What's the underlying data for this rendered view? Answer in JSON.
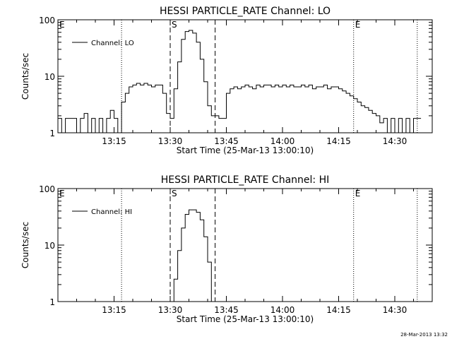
{
  "footer": {
    "timestamp": "28-Mar-2013 13:32"
  },
  "chart_data": [
    {
      "type": "line",
      "title": "HESSI PARTICLE_RATE Channel: LO",
      "xlabel": "Start Time (25-Mar-13 13:00:10)",
      "ylabel": "Counts/sec",
      "yscale": "log",
      "xlim": [
        "13:00",
        "14:40"
      ],
      "ylim": [
        1,
        100
      ],
      "x_tick_labels": [
        "13:15",
        "13:30",
        "13:45",
        "14:00",
        "14:15",
        "14:30"
      ],
      "y_tick_labels": [
        "1",
        "10",
        "100"
      ],
      "legend": {
        "position": "top-left",
        "entries": [
          "Channel: LO"
        ]
      },
      "markers": [
        {
          "label": "E",
          "time": "13:00",
          "style": "dotted"
        },
        {
          "label": "",
          "time": "13:17",
          "style": "dotted"
        },
        {
          "label": "S",
          "time": "13:30",
          "style": "dashed"
        },
        {
          "label": "",
          "time": "13:42",
          "style": "dashed"
        },
        {
          "label": "E",
          "time": "14:19",
          "style": "dotted"
        },
        {
          "label": "",
          "time": "14:36",
          "style": "dotted"
        }
      ],
      "series": [
        {
          "name": "Channel: LO",
          "x": [
            "13:00",
            "13:01",
            "13:02",
            "13:03",
            "13:04",
            "13:05",
            "13:06",
            "13:07",
            "13:08",
            "13:09",
            "13:10",
            "13:11",
            "13:12",
            "13:13",
            "13:14",
            "13:15",
            "13:16",
            "13:17",
            "13:18",
            "13:19",
            "13:20",
            "13:21",
            "13:22",
            "13:23",
            "13:24",
            "13:25",
            "13:26",
            "13:27",
            "13:28",
            "13:29",
            "13:30",
            "13:31",
            "13:32",
            "13:33",
            "13:34",
            "13:35",
            "13:36",
            "13:37",
            "13:38",
            "13:39",
            "13:40",
            "13:41",
            "13:42",
            "13:43",
            "13:44",
            "13:45",
            "13:46",
            "13:47",
            "13:48",
            "13:49",
            "13:50",
            "13:51",
            "13:52",
            "13:53",
            "13:54",
            "13:55",
            "13:56",
            "13:57",
            "13:58",
            "13:59",
            "14:00",
            "14:01",
            "14:02",
            "14:03",
            "14:04",
            "14:05",
            "14:06",
            "14:07",
            "14:08",
            "14:09",
            "14:10",
            "14:11",
            "14:12",
            "14:13",
            "14:14",
            "14:15",
            "14:16",
            "14:17",
            "14:18",
            "14:19",
            "14:20",
            "14:21",
            "14:22",
            "14:23",
            "14:24",
            "14:25",
            "14:26",
            "14:27",
            "14:28",
            "14:29",
            "14:30",
            "14:31",
            "14:32",
            "14:33",
            "14:34",
            "14:35",
            "14:36"
          ],
          "y": [
            1.8,
            1,
            1.8,
            1.8,
            1.8,
            1,
            1.8,
            2.2,
            1,
            1.8,
            1,
            1.8,
            1,
            1.8,
            2.5,
            1.8,
            1,
            3.5,
            5,
            6.5,
            7,
            7.5,
            7,
            7.5,
            7,
            6.5,
            7,
            7,
            5,
            2.2,
            1.8,
            6,
            18,
            45,
            62,
            65,
            58,
            40,
            20,
            8,
            3,
            2,
            2,
            1.8,
            1.8,
            5,
            6,
            6.5,
            6,
            6.5,
            7,
            6.5,
            6,
            7,
            6.5,
            7,
            7,
            6.5,
            7,
            6.5,
            7,
            6.5,
            7,
            6.5,
            6.5,
            7,
            6.5,
            7,
            6,
            6.5,
            6.5,
            7,
            6,
            6.5,
            6.5,
            6,
            5.5,
            5,
            4.5,
            4,
            3.5,
            3,
            2.8,
            2.5,
            2.2,
            2,
            1.5,
            1.8,
            1,
            1.8,
            1,
            1.8,
            1,
            1.8,
            1,
            1.8,
            1.8
          ]
        }
      ]
    },
    {
      "type": "line",
      "title": "HESSI PARTICLE_RATE Channel: HI",
      "xlabel": "Start Time (25-Mar-13 13:00:10)",
      "ylabel": "Counts/sec",
      "yscale": "log",
      "xlim": [
        "13:00",
        "14:40"
      ],
      "ylim": [
        1,
        100
      ],
      "x_tick_labels": [
        "13:15",
        "13:30",
        "13:45",
        "14:00",
        "14:15",
        "14:30"
      ],
      "y_tick_labels": [
        "1",
        "10",
        "100"
      ],
      "legend": {
        "position": "top-left",
        "entries": [
          "Channel: HI"
        ]
      },
      "markers": [
        {
          "label": "E",
          "time": "13:00",
          "style": "dotted"
        },
        {
          "label": "",
          "time": "13:17",
          "style": "dotted"
        },
        {
          "label": "S",
          "time": "13:30",
          "style": "dashed"
        },
        {
          "label": "",
          "time": "13:42",
          "style": "dashed"
        },
        {
          "label": "E",
          "time": "14:19",
          "style": "dotted"
        },
        {
          "label": "",
          "time": "14:36",
          "style": "dotted"
        }
      ],
      "series": [
        {
          "name": "Channel: HI",
          "x": [
            "13:30",
            "13:31",
            "13:32",
            "13:33",
            "13:34",
            "13:35",
            "13:36",
            "13:37",
            "13:38",
            "13:39",
            "13:40",
            "13:41"
          ],
          "y": [
            1,
            2.5,
            8,
            20,
            35,
            42,
            42,
            38,
            28,
            14,
            5,
            1
          ]
        }
      ]
    }
  ]
}
